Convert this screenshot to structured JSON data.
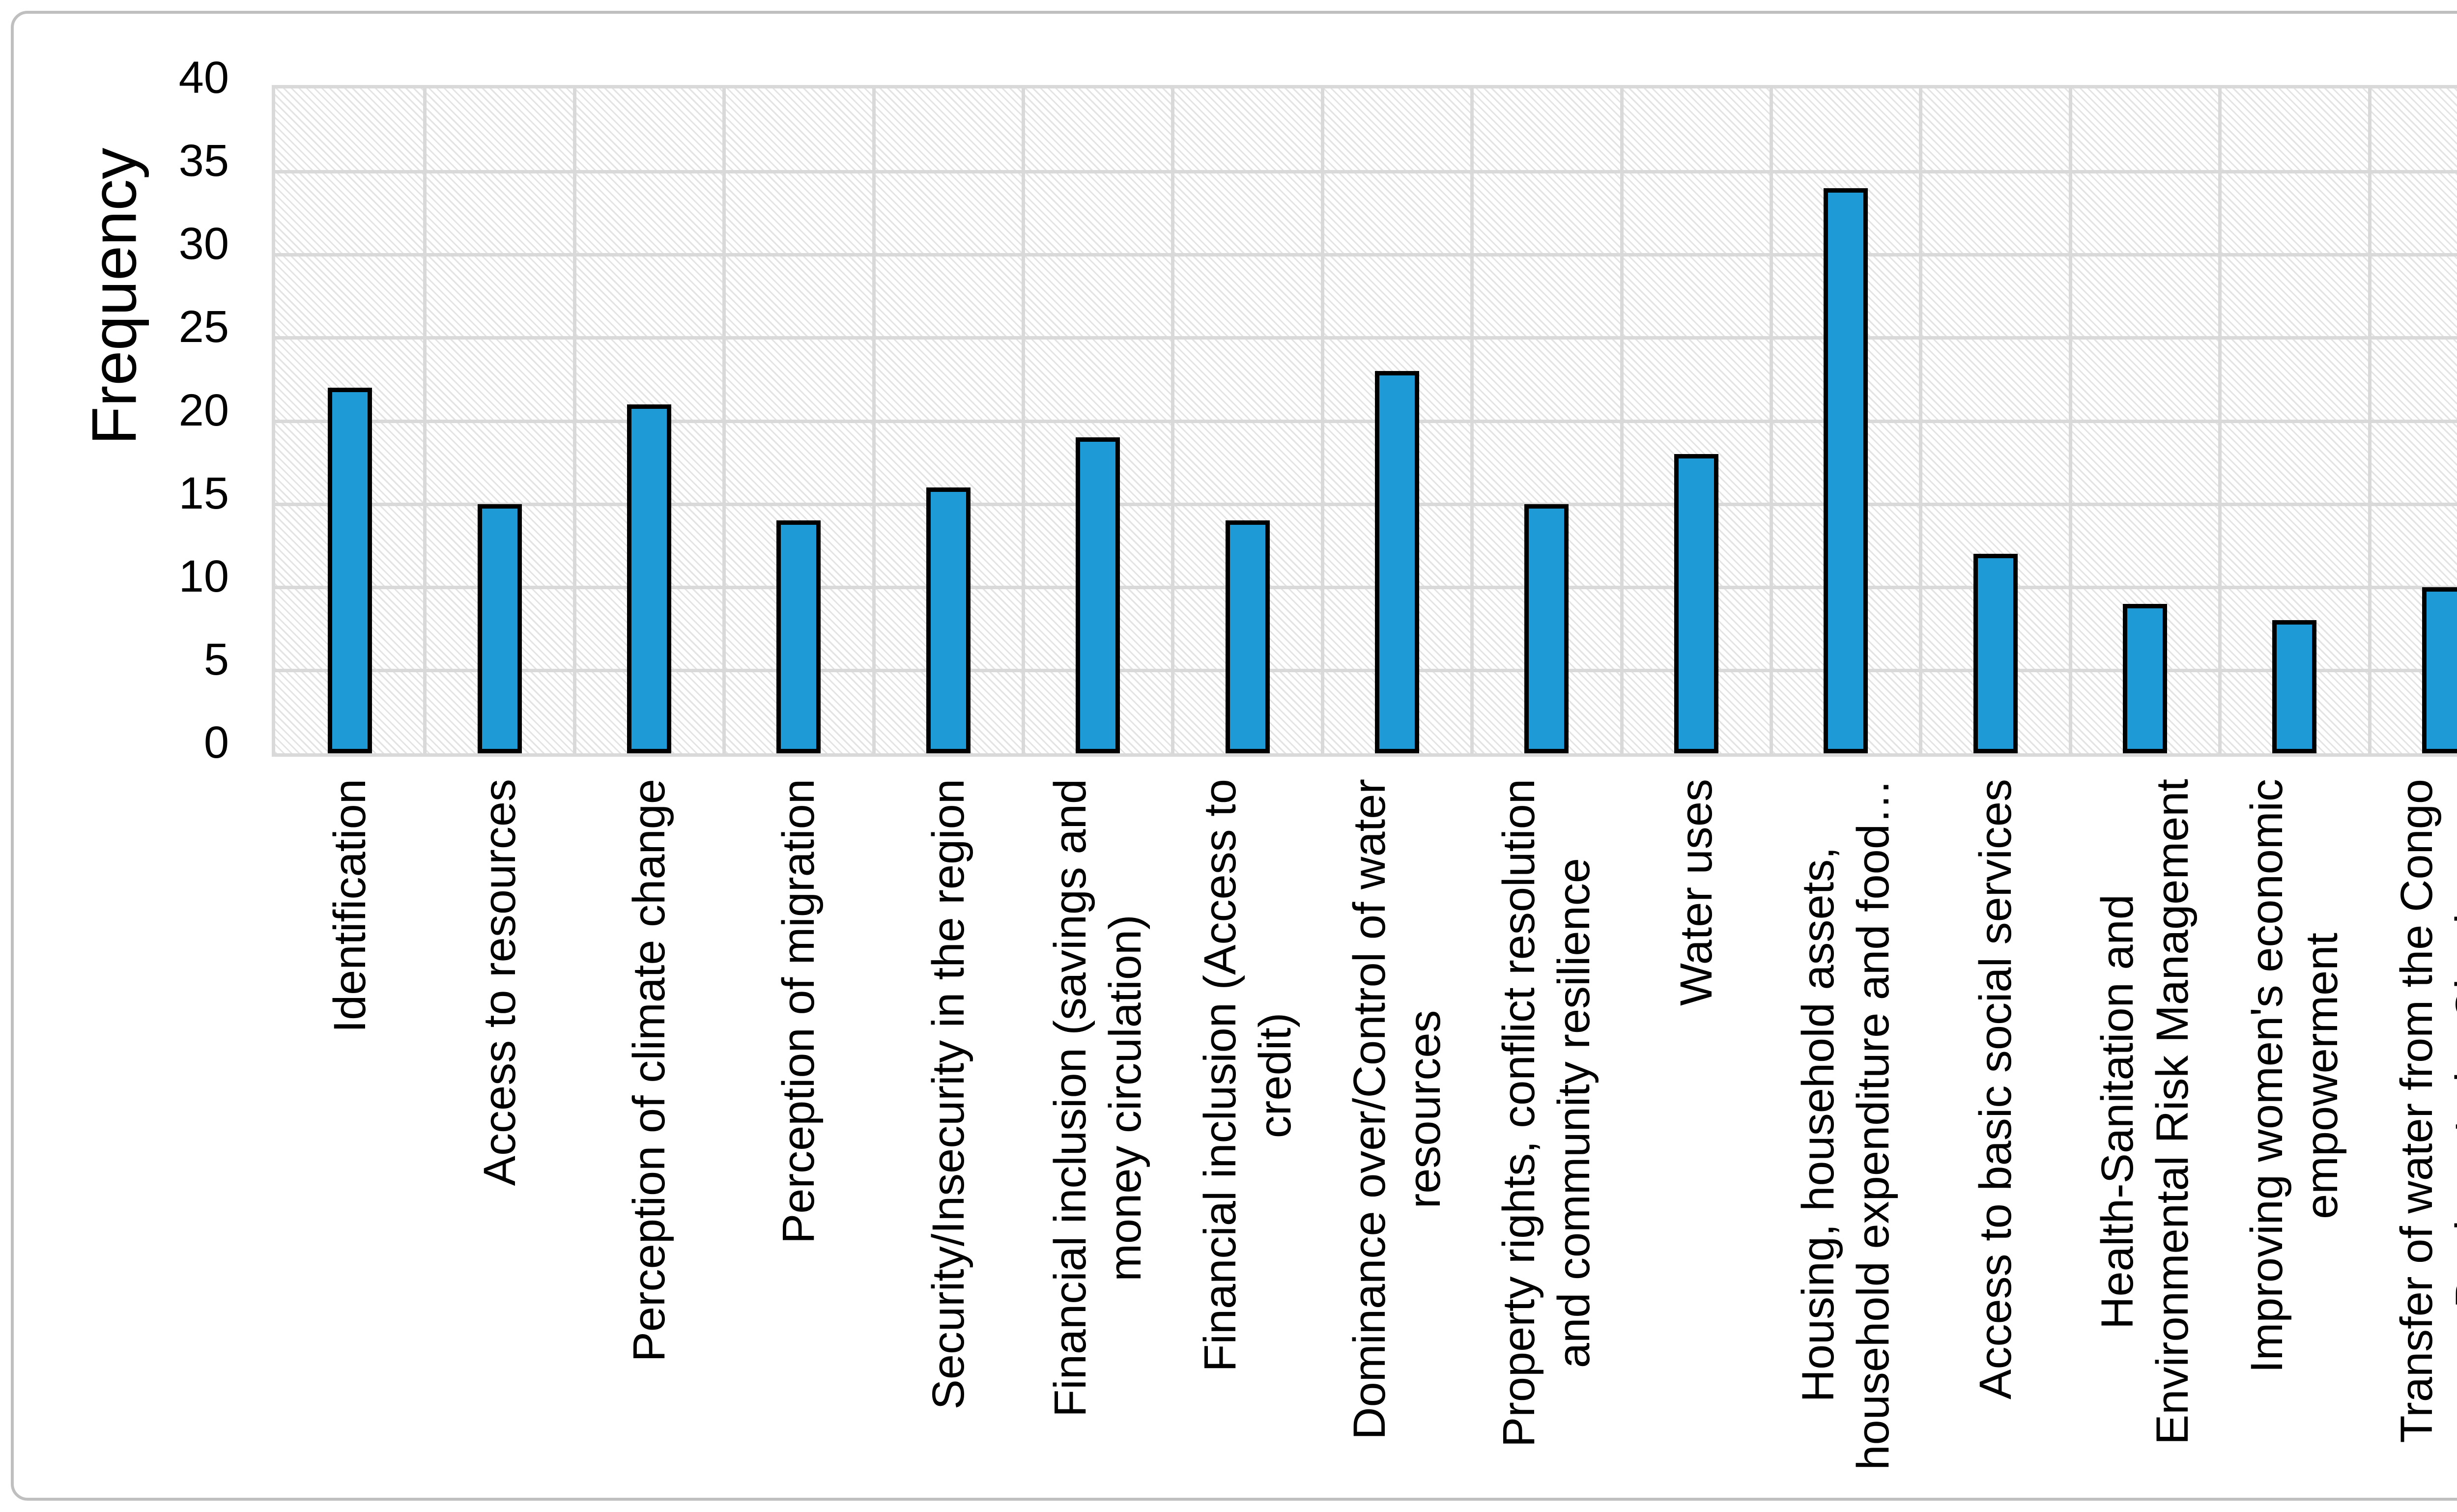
{
  "chart_data": {
    "type": "bar",
    "title": "",
    "ylabel": "Frequency",
    "xlabel": "",
    "ylim": [
      0,
      40
    ],
    "ytick_interval": 5,
    "yticks": [
      40,
      35,
      30,
      25,
      20,
      15,
      10,
      5,
      0
    ],
    "grid": "both-major-gridlines",
    "legend_position": "none",
    "plot_background": "light-gray downward-diagonal dashed hatch on white",
    "bar_color": "#1E9BD6",
    "bar_outline_color": "#000000",
    "gridline_color": "#D9D9D9",
    "frame_color": "#BFBFBF",
    "categories": [
      "Identification",
      "Access to resources",
      "Perception of climate change",
      "Perception of migration",
      "Security/Insecurity in the region",
      "Financial inclusion (savings and money circulation)",
      "Financial inclusion (Access to credit)",
      "Dominance over/Control of water resources",
      "Property rights, conflict resolution and community resilience",
      "Water uses",
      "Housing, household assets, household expenditure and food…",
      "Access to basic social services",
      "Health-Sanitation and Environmental Risk Management",
      "Improving women's economic empowerment",
      "Transfer of water from the Congo Basin to Lake Chad"
    ],
    "category_display_lines": [
      [
        "Identification"
      ],
      [
        "Access to resources"
      ],
      [
        "Perception of climate change"
      ],
      [
        "Perception of migration"
      ],
      [
        "Security/Insecurity in the region"
      ],
      [
        "Financial inclusion (savings and",
        "money circulation)"
      ],
      [
        "Financial inclusion (Access to",
        "credit)"
      ],
      [
        "Dominance over/Control of water",
        "resources"
      ],
      [
        "Property rights, conflict resolution",
        "and community resilience"
      ],
      [
        "Water uses"
      ],
      [
        "Housing, household assets,",
        "household expenditure and food…"
      ],
      [
        "Access to basic social services"
      ],
      [
        "Health-Sanitation and",
        "Environmental Risk Management"
      ],
      [
        "Improving women's economic",
        "empowerment"
      ],
      [
        "Transfer of water from the Congo",
        "Basin to Lake Chad"
      ]
    ],
    "values": [
      22,
      15,
      21,
      14,
      16,
      19,
      14,
      23,
      15,
      18,
      34,
      12,
      9,
      8,
      10
    ]
  }
}
